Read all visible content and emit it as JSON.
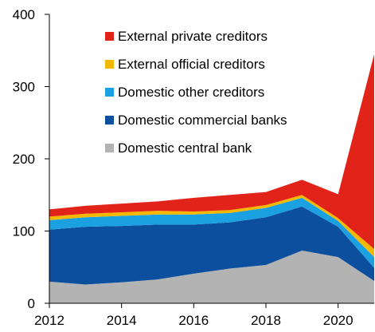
{
  "chart_data": {
    "type": "area",
    "stacked": true,
    "x": [
      2012,
      2013,
      2014,
      2015,
      2016,
      2017,
      2018,
      2019,
      2020,
      2021
    ],
    "xlim": [
      2012,
      2021
    ],
    "ylim": [
      0,
      400
    ],
    "xticks": [
      2012,
      2014,
      2016,
      2018,
      2020
    ],
    "yticks": [
      0,
      100,
      200,
      300,
      400
    ],
    "grid": false,
    "legend_position": "top-right",
    "series": [
      {
        "name": "Domestic central bank",
        "color": "#b3b3b3",
        "values": [
          30,
          26,
          29,
          33,
          41,
          48,
          53,
          73,
          64,
          31
        ]
      },
      {
        "name": "Domestic commercial banks",
        "color": "#0b4f9e",
        "values": [
          72,
          80,
          78,
          76,
          68,
          64,
          66,
          61,
          42,
          18
        ]
      },
      {
        "name": "Domestic other creditors",
        "color": "#1ba1e2",
        "values": [
          13,
          13,
          14,
          14,
          14,
          13,
          13,
          12,
          8,
          15
        ]
      },
      {
        "name": "External official creditors",
        "color": "#f5b800",
        "values": [
          5,
          5,
          5,
          5,
          4,
          4,
          4,
          4,
          4,
          11
        ]
      },
      {
        "name": "External private creditors",
        "color": "#e2231a",
        "values": [
          10,
          11,
          12,
          13,
          19,
          21,
          18,
          21,
          33,
          270
        ]
      }
    ]
  }
}
